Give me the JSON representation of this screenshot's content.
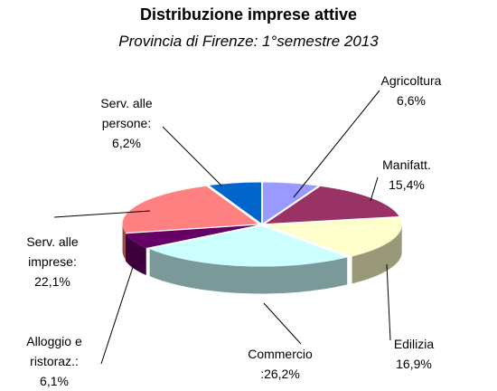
{
  "chart_data": {
    "type": "pie",
    "title": "Distribuzione imprese attive",
    "subtitle": "Provincia di Firenze: 1°semestre 2013",
    "categories": [
      "Agricoltura",
      "Manifatt.",
      "Edilizia",
      "Commercio",
      "Alloggio e ristoraz.:",
      "Serv. alle imprese:",
      "Serv. alle persone:"
    ],
    "values": [
      6.6,
      15.4,
      16.9,
      26.2,
      6.1,
      22.1,
      6.2
    ],
    "value_labels": [
      "6,6%",
      "15,4%",
      "16,9%",
      ":26,2%",
      "6,1%",
      "22,1%",
      "6,2%"
    ],
    "colors": [
      "#9999ff",
      "#993366",
      "#ffffcc",
      "#ccffff",
      "#660066",
      "#ff8080",
      "#0066cc"
    ]
  }
}
